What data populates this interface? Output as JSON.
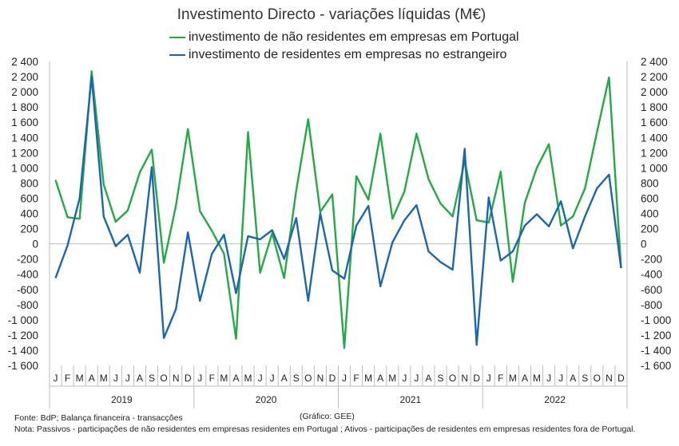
{
  "chart_data": {
    "type": "line",
    "title": "Investimento Directo - variações líquidas (M€)",
    "legend_position": "top",
    "grid": false,
    "ylim": [
      -1600,
      2400
    ],
    "yticks": [
      "2 400",
      "2 200",
      "2 000",
      "1 800",
      "1 600",
      "1 400",
      "1 200",
      "1 000",
      "800",
      "600",
      "400",
      "200",
      "0",
      "-200",
      "-400",
      "-600",
      "-800",
      "-1 000",
      "-1 200",
      "-1 400",
      "-1 600"
    ],
    "month_labels": [
      "J",
      "F",
      "M",
      "A",
      "M",
      "J",
      "J",
      "A",
      "S",
      "O",
      "N",
      "D"
    ],
    "years": [
      "2019",
      "2020",
      "2021",
      "2022"
    ],
    "series": [
      {
        "name": "investimento de não residentes em empresas em Portugal",
        "color": "#22aa44",
        "values": [
          840,
          350,
          330,
          2270,
          780,
          290,
          440,
          940,
          1240,
          -250,
          500,
          1510,
          430,
          170,
          -130,
          -1250,
          1470,
          -380,
          140,
          -450,
          700,
          1640,
          420,
          650,
          -1370,
          890,
          580,
          1450,
          330,
          690,
          1450,
          850,
          530,
          360,
          1090,
          310,
          280,
          950,
          -500,
          540,
          1000,
          1310,
          240,
          360,
          730,
          1470,
          2190,
          -320
        ]
      },
      {
        "name": "investimento de residentes em empresas no estrangeiro",
        "color": "#1a66b3",
        "values": [
          -450,
          -20,
          600,
          2200,
          360,
          -30,
          120,
          -380,
          1010,
          -1240,
          -860,
          150,
          -750,
          -130,
          120,
          -650,
          100,
          60,
          180,
          -200,
          340,
          -750,
          400,
          -350,
          -460,
          240,
          500,
          -560,
          20,
          310,
          510,
          -100,
          -240,
          -340,
          1250,
          -1330,
          610,
          -220,
          -100,
          240,
          390,
          230,
          560,
          -60,
          360,
          730,
          910,
          -320
        ]
      }
    ]
  },
  "footnotes": {
    "source": "Fonte: BdP; Balança financeira - transacções",
    "credit": "(Gráfico: GEE)",
    "note": "Nota: Passivos - participações de não residentes em empresas residentes em Portugal ; Ativos - participações de residentes em empresas residentes fora de Portugal."
  }
}
